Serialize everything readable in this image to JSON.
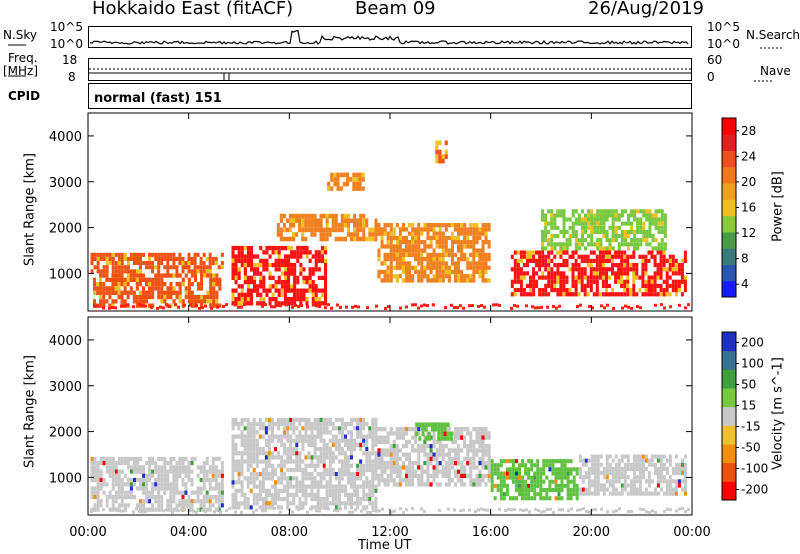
{
  "header": {
    "station": "Hokkaido East (fitACF)",
    "beam": "Beam 09",
    "date": "26/Aug/2019"
  },
  "top_panels": {
    "nsky_label": "N.Sky",
    "nsky_ticks": [
      "10^5",
      "10^0"
    ],
    "nsearch_label": "N.Search",
    "nsearch_ticks": [
      "10^5",
      "10^0"
    ],
    "freq_label_1": "Freq.",
    "freq_label_2": "[MHz]",
    "freq_ticks": [
      "18",
      "8"
    ],
    "nave_label": "Nave",
    "nave_ticks": [
      "60",
      "0"
    ],
    "cpid_label": "CPID",
    "cpid_value": "normal (fast) 151"
  },
  "chart_data": [
    {
      "type": "heatmap",
      "title": "",
      "xlabel": "Time UT",
      "ylabel": "Slant Range [km]",
      "x_ticks": [
        "00:00",
        "04:00",
        "08:00",
        "12:00",
        "16:00",
        "20:00",
        "00:00"
      ],
      "y_ticks": [
        "1000",
        "2000",
        "3000",
        "4000"
      ],
      "xlim": [
        0,
        24
      ],
      "ylim": [
        180,
        4500
      ],
      "colorbar": {
        "label": "Power [dB]",
        "ticks": [
          "28",
          "24",
          "20",
          "16",
          "12",
          "8",
          "4"
        ],
        "range": [
          0,
          30
        ],
        "colors": [
          "#1a1aff",
          "#2a55b0",
          "#3a7a7a",
          "#4a9a4a",
          "#8cc83c",
          "#f0c020",
          "#f0a020",
          "#f07820",
          "#f05020",
          "#e02020",
          "#ff0000"
        ]
      },
      "regions": [
        {
          "t0": 0.1,
          "t1": 5.4,
          "r0": 1000,
          "r1": 1450,
          "level": "high"
        },
        {
          "t0": 0.2,
          "t1": 5.3,
          "r0": 250,
          "r1": 1000,
          "level": "high"
        },
        {
          "t0": 5.7,
          "t1": 9.5,
          "r0": 300,
          "r1": 1600,
          "level": "max"
        },
        {
          "t0": 7.5,
          "t1": 11.5,
          "r0": 1700,
          "r1": 2300,
          "level": "mid"
        },
        {
          "t0": 9.5,
          "t1": 11.0,
          "r0": 2800,
          "r1": 3200,
          "level": "mid"
        },
        {
          "t0": 11.5,
          "t1": 16.0,
          "r0": 800,
          "r1": 2100,
          "level": "mid"
        },
        {
          "t0": 13.8,
          "t1": 14.3,
          "r0": 3400,
          "r1": 3900,
          "level": "high"
        },
        {
          "t0": 16.8,
          "t1": 23.8,
          "r0": 500,
          "r1": 1500,
          "level": "max"
        },
        {
          "t0": 18.0,
          "t1": 23.0,
          "r0": 1500,
          "r1": 2400,
          "level": "low"
        }
      ]
    },
    {
      "type": "heatmap",
      "title": "",
      "xlabel": "Time UT",
      "ylabel": "Slant Range [km]",
      "x_ticks": [
        "00:00",
        "04:00",
        "08:00",
        "12:00",
        "16:00",
        "20:00",
        "00:00"
      ],
      "y_ticks": [
        "1000",
        "2000",
        "3000",
        "4000"
      ],
      "xlim": [
        0,
        24
      ],
      "ylim": [
        180,
        4500
      ],
      "colorbar": {
        "label": "Velocity [m s^-1]",
        "ticks": [
          "200",
          "100",
          "50",
          "15",
          "-15",
          "-50",
          "-100",
          "-200"
        ],
        "range": [
          -250,
          250
        ],
        "colors": [
          "#ff0000",
          "#f05010",
          "#f09010",
          "#f0c030",
          "#c8c8c8",
          "#78c840",
          "#40a040",
          "#3a7090",
          "#2030c0"
        ]
      },
      "regions": [
        {
          "t0": 0.1,
          "t1": 5.4,
          "r0": 250,
          "r1": 1450,
          "level": "gray"
        },
        {
          "t0": 5.7,
          "t1": 11.5,
          "r0": 300,
          "r1": 2300,
          "level": "gray"
        },
        {
          "t0": 11.5,
          "t1": 16.0,
          "r0": 800,
          "r1": 2100,
          "level": "gray"
        },
        {
          "t0": 13.0,
          "t1": 14.5,
          "r0": 1800,
          "r1": 2200,
          "level": "green"
        },
        {
          "t0": 16.0,
          "t1": 19.5,
          "r0": 500,
          "r1": 1400,
          "level": "green"
        },
        {
          "t0": 19.5,
          "t1": 23.8,
          "r0": 600,
          "r1": 1500,
          "level": "gray"
        }
      ]
    }
  ]
}
